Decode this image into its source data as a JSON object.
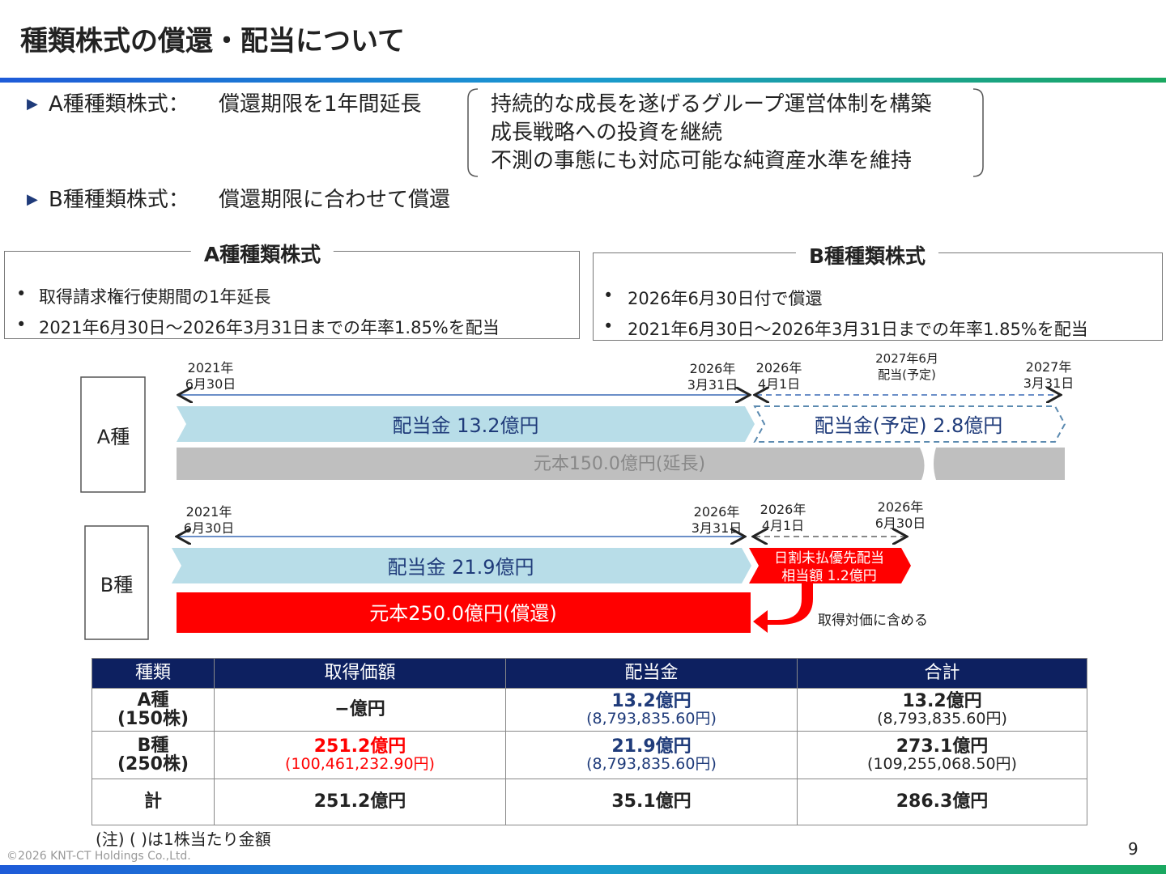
{
  "header": {
    "title": "種類株式の償還・配当について"
  },
  "summary": {
    "items": [
      {
        "label": "A種種類株式：",
        "text": "償還期限を1年間延長"
      },
      {
        "label": "B種種類株式：",
        "text": "償還期限に合わせて償還"
      }
    ],
    "reasons": [
      "持続的な成長を遂げるグループ運営体制を構築",
      "成長戦略への投資を継続",
      "不測の事態にも対応可能な純資産水準を維持"
    ]
  },
  "boxes": [
    {
      "title": "A種種類株式",
      "bullets": [
        "取得請求権行使期間の1年延長",
        "2021年6月30日～2026年3月31日までの年率1.85%を配当"
      ]
    },
    {
      "title": "B種種類株式",
      "bullets": [
        "2026年6月30日付で償還",
        "2021年6月30日～2026年3月31日までの年率1.85%を配当"
      ]
    }
  ],
  "timeline": {
    "a": {
      "label": "A種",
      "dates": [
        [
          "2021年",
          "6月30日"
        ],
        [
          "2026年",
          "3月31日"
        ],
        [
          "2026年",
          "4月1日"
        ],
        [
          "2027年6月",
          "配当(予定)"
        ],
        [
          "2027年",
          "3月31日"
        ]
      ],
      "dividend": "配当金 13.2億円",
      "dividend_planned": "配当金(予定) 2.8億円",
      "principal": "元本150.0億円(延長)"
    },
    "b": {
      "label": "B種",
      "dates": [
        [
          "2021年",
          "6月30日"
        ],
        [
          "2026年",
          "3月31日"
        ],
        [
          "2026年",
          "4月1日"
        ],
        [
          "2026年",
          "6月30日"
        ]
      ],
      "dividend": "配当金 21.9億円",
      "prorated": [
        "日割未払優先配当",
        "相当額 1.2億円"
      ],
      "principal": "元本250.0億円(償還)",
      "arrow_note": "取得対価に含める"
    }
  },
  "table": {
    "headers": [
      "種類",
      "取得価額",
      "配当金",
      "合計"
    ],
    "rows": [
      [
        {
          "lines": [
            "A種",
            "(150株)"
          ]
        },
        {
          "main": "−億円"
        },
        {
          "main": "13.2億円",
          "sub": "(8,793,835.60円)"
        },
        {
          "main": "13.2億円",
          "sub": "(8,793,835.60円)"
        }
      ],
      [
        {
          "lines": [
            "B種",
            "(250株)"
          ]
        },
        {
          "main": "251.2億円",
          "sub": "(100,461,232.90円)"
        },
        {
          "main": "21.9億円",
          "sub": "(8,793,835.60円)"
        },
        {
          "main": "273.1億円",
          "sub": "(109,255,068.50円)"
        }
      ],
      [
        {
          "lines": [
            "計"
          ]
        },
        {
          "main": "251.2億円"
        },
        {
          "main": "35.1億円"
        },
        {
          "main": "286.3億円"
        }
      ]
    ]
  },
  "footer": {
    "note": "(注) ( )は1株当たり金額",
    "copyright": "©2026 KNT-CT Holdings Co.,Ltd.",
    "page": "9"
  }
}
